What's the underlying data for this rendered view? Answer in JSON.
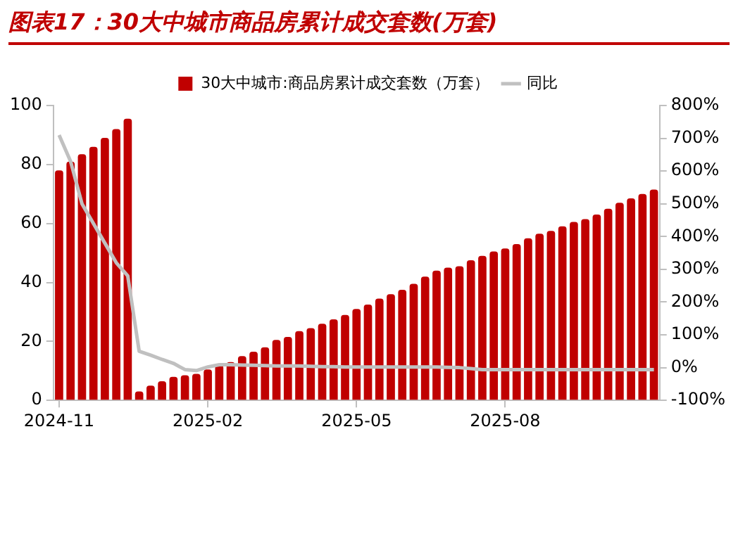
{
  "chart_data": {
    "type": "bar",
    "title": "图表17：30大中城市商品房累计成交套数(万套)",
    "categories": [
      "2024-11",
      null,
      null,
      null,
      null,
      null,
      null,
      null,
      null,
      null,
      null,
      null,
      null,
      "2025-02",
      null,
      null,
      null,
      null,
      null,
      null,
      null,
      null,
      null,
      null,
      null,
      null,
      "2025-05",
      null,
      null,
      null,
      null,
      null,
      null,
      null,
      null,
      null,
      null,
      null,
      null,
      "2025-08",
      null,
      null,
      null,
      null,
      null,
      null,
      null,
      null,
      null,
      null,
      null,
      null,
      null
    ],
    "series": [
      {
        "name": "30大中城市:商品房累计成交套数（万套）",
        "color": "#c00000",
        "values": [
          78,
          81,
          83.5,
          86,
          89,
          92,
          95.5,
          3,
          5,
          6.5,
          8,
          8.5,
          9,
          10.5,
          12,
          13,
          15,
          16.5,
          18,
          20.5,
          21.5,
          23.5,
          24.5,
          26,
          27.5,
          29,
          31,
          32.5,
          34.5,
          36,
          37.5,
          39.5,
          42,
          44,
          45,
          45.5,
          47.5,
          49,
          50.5,
          51.5,
          53,
          55,
          56.5,
          57.5,
          59,
          60.5,
          61.5,
          63,
          65,
          67,
          68.5,
          70,
          71.5
        ]
      },
      {
        "name": "同比",
        "type": "line",
        "axis": "y2",
        "color": "#c0c0c0",
        "values": [
          710,
          630,
          500,
          440,
          380,
          320,
          280,
          50,
          38,
          25,
          13,
          -6,
          -9,
          2,
          9,
          9,
          8,
          7,
          6,
          5,
          5,
          5,
          4,
          3,
          3,
          2,
          2,
          2,
          2,
          2,
          2,
          2,
          2,
          2,
          1,
          0,
          -3,
          -6,
          -6,
          -6,
          -6,
          -6,
          -6,
          -6,
          -6,
          -6,
          -6,
          -6,
          -6,
          -6,
          -6,
          -6,
          -6
        ]
      }
    ],
    "ylim": [
      0,
      100
    ],
    "yticks": [
      0,
      20,
      40,
      60,
      80,
      100
    ],
    "y2lim": [
      -100,
      800
    ],
    "y2ticks": [
      {
        "value": -100,
        "label": "-100%"
      },
      {
        "value": 0,
        "label": "0%"
      },
      {
        "value": 100,
        "label": "100%"
      },
      {
        "value": 200,
        "label": "200%"
      },
      {
        "value": 300,
        "label": "300%"
      },
      {
        "value": 400,
        "label": "400%"
      },
      {
        "value": 500,
        "label": "500%"
      },
      {
        "value": 600,
        "label": "600%"
      },
      {
        "value": 700,
        "label": "700%"
      },
      {
        "value": 800,
        "label": "800%"
      }
    ],
    "legend": "top",
    "grid": false,
    "marker": "none"
  }
}
